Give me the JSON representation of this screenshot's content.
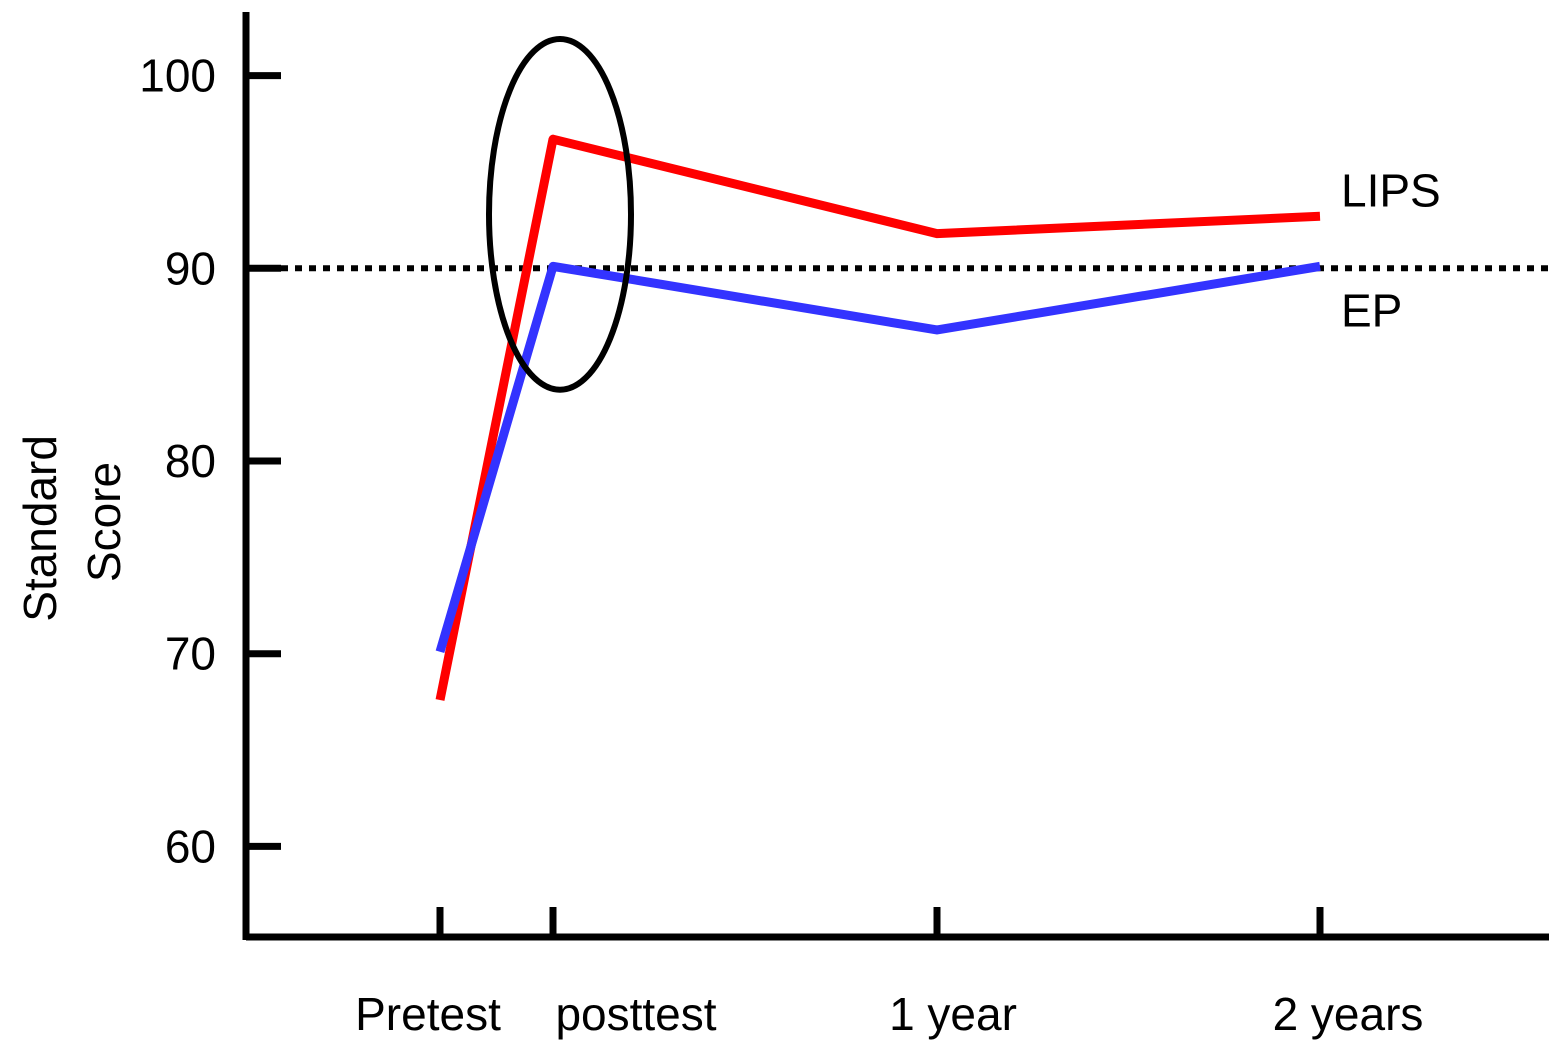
{
  "chart_data": {
    "type": "line",
    "title": "",
    "xlabel": "",
    "ylabel_lines": [
      "Standard",
      "Score"
    ],
    "categories": [
      "Pretest",
      "posttest",
      "1 year",
      "2 years"
    ],
    "yticks": [
      60,
      70,
      80,
      90,
      100
    ],
    "ylim": [
      55.3,
      103.3
    ],
    "grid": false,
    "reference_line": {
      "value": 90,
      "style": "dotted",
      "color": "#000000"
    },
    "series": [
      {
        "name": "LIPS",
        "color": "#ff0000",
        "values": [
          67.6,
          96.7,
          91.8,
          92.7
        ]
      },
      {
        "name": "EP",
        "color": "#3333ff",
        "values": [
          70.1,
          90.1,
          86.8,
          90.1
        ]
      }
    ],
    "annotations": [
      {
        "type": "ellipse",
        "category": "posttest",
        "y_center": 92.8,
        "y_radius": 9.1
      }
    ]
  }
}
